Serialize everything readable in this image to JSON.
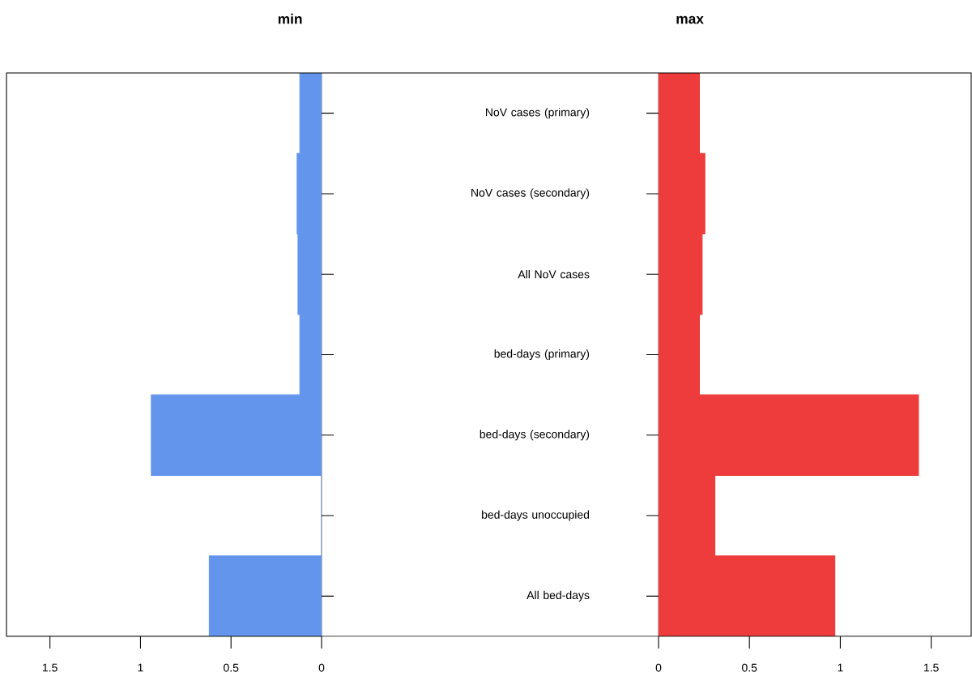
{
  "chart_data": [
    {
      "type": "bar",
      "orientation": "horizontal",
      "title": "min",
      "categories": [
        null,
        null,
        null,
        null,
        null,
        null,
        null
      ],
      "values": [
        0.12,
        0.135,
        0.13,
        0.12,
        0.94,
        0,
        0.62
      ],
      "color": "#6495ed",
      "xlim": [
        1.74,
        0
      ],
      "xticks": [
        1.5,
        1,
        0.5,
        0
      ],
      "tick_labels": "x"
    },
    {
      "type": "bar",
      "orientation": "horizontal",
      "title": "max",
      "categories": [
        "NoV cases (primary)",
        "NoV cases (secondary)",
        "All NoV cases",
        "bed-days (primary)",
        "bed-days (secondary)",
        "bed-days unoccupied",
        "All bed-days"
      ],
      "values": [
        0.225,
        0.255,
        0.24,
        0.225,
        1.43,
        0.31,
        0.97
      ],
      "color": "#ee3b3b",
      "xlim": [
        0,
        1.72
      ],
      "xticks": [
        0,
        0.5,
        1,
        1.5
      ]
    }
  ]
}
